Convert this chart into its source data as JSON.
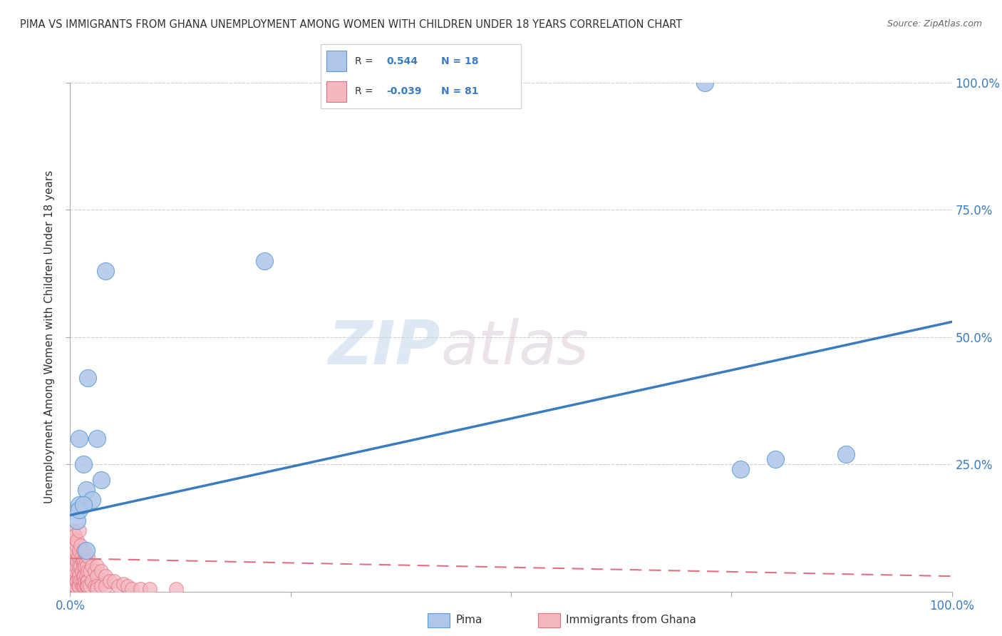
{
  "title": "PIMA VS IMMIGRANTS FROM GHANA UNEMPLOYMENT AMONG WOMEN WITH CHILDREN UNDER 18 YEARS CORRELATION CHART",
  "source": "Source: ZipAtlas.com",
  "ylabel": "Unemployment Among Women with Children Under 18 years",
  "xlim": [
    0,
    1.0
  ],
  "ylim": [
    0,
    1.0
  ],
  "xtick_positions": [
    0.0,
    0.25,
    0.5,
    0.75,
    1.0
  ],
  "xtick_labels": [
    "0.0%",
    "",
    "",
    "",
    "100.0%"
  ],
  "ytick_positions": [
    0.25,
    0.5,
    0.75,
    1.0
  ],
  "ytick_labels_right": [
    "25.0%",
    "50.0%",
    "75.0%",
    "100.0%"
  ],
  "pima_R": 0.544,
  "pima_N": 18,
  "ghana_R": -0.039,
  "ghana_N": 81,
  "pima_color": "#aec6e8",
  "pima_edge_color": "#5b9bd5",
  "ghana_color": "#f4b8c1",
  "ghana_edge_color": "#e07080",
  "trend_pima_color": "#3a7cbf",
  "trend_ghana_color": "#e07080",
  "watermark_zip": "ZIP",
  "watermark_atlas": "atlas",
  "background_color": "#ffffff",
  "grid_color": "#cccccc",
  "pima_points_x": [
    0.02,
    0.01,
    0.03,
    0.018,
    0.01,
    0.008,
    0.025,
    0.01,
    0.015,
    0.035,
    0.04,
    0.018,
    0.22,
    0.015,
    0.88,
    0.8,
    0.76,
    0.72
  ],
  "pima_points_y": [
    0.42,
    0.3,
    0.3,
    0.2,
    0.17,
    0.14,
    0.18,
    0.16,
    0.17,
    0.22,
    0.63,
    0.08,
    0.65,
    0.25,
    0.27,
    0.26,
    0.24,
    1.0
  ],
  "ghana_points_x": [
    0.001,
    0.002,
    0.002,
    0.003,
    0.003,
    0.003,
    0.004,
    0.004,
    0.004,
    0.005,
    0.005,
    0.005,
    0.005,
    0.006,
    0.006,
    0.006,
    0.007,
    0.007,
    0.007,
    0.008,
    0.008,
    0.008,
    0.009,
    0.009,
    0.009,
    0.01,
    0.01,
    0.01,
    0.01,
    0.01,
    0.01,
    0.012,
    0.012,
    0.012,
    0.013,
    0.013,
    0.013,
    0.014,
    0.014,
    0.015,
    0.015,
    0.015,
    0.015,
    0.016,
    0.016,
    0.016,
    0.017,
    0.017,
    0.018,
    0.018,
    0.018,
    0.019,
    0.019,
    0.019,
    0.02,
    0.02,
    0.02,
    0.02,
    0.022,
    0.022,
    0.025,
    0.025,
    0.028,
    0.028,
    0.03,
    0.03,
    0.03,
    0.03,
    0.035,
    0.035,
    0.04,
    0.04,
    0.045,
    0.05,
    0.055,
    0.06,
    0.065,
    0.07,
    0.08,
    0.09,
    0.12
  ],
  "ghana_points_y": [
    0.08,
    0.1,
    0.05,
    0.12,
    0.07,
    0.04,
    0.09,
    0.05,
    0.02,
    0.11,
    0.06,
    0.03,
    0.01,
    0.08,
    0.04,
    0.01,
    0.09,
    0.05,
    0.02,
    0.1,
    0.06,
    0.02,
    0.07,
    0.04,
    0.01,
    0.12,
    0.08,
    0.05,
    0.03,
    0.02,
    0.01,
    0.09,
    0.05,
    0.02,
    0.07,
    0.04,
    0.01,
    0.06,
    0.02,
    0.08,
    0.05,
    0.03,
    0.01,
    0.06,
    0.03,
    0.01,
    0.05,
    0.02,
    0.06,
    0.03,
    0.01,
    0.05,
    0.02,
    0.01,
    0.07,
    0.04,
    0.02,
    0.01,
    0.04,
    0.01,
    0.05,
    0.02,
    0.04,
    0.01,
    0.05,
    0.03,
    0.01,
    0.005,
    0.04,
    0.01,
    0.03,
    0.01,
    0.02,
    0.02,
    0.01,
    0.015,
    0.01,
    0.005,
    0.005,
    0.005,
    0.005
  ],
  "pima_trend_x0": 0.0,
  "pima_trend_y0": 0.15,
  "pima_trend_x1": 1.0,
  "pima_trend_y1": 0.53,
  "ghana_trend_x0": 0.0,
  "ghana_trend_y0": 0.065,
  "ghana_trend_x1": 1.0,
  "ghana_trend_y1": 0.03
}
